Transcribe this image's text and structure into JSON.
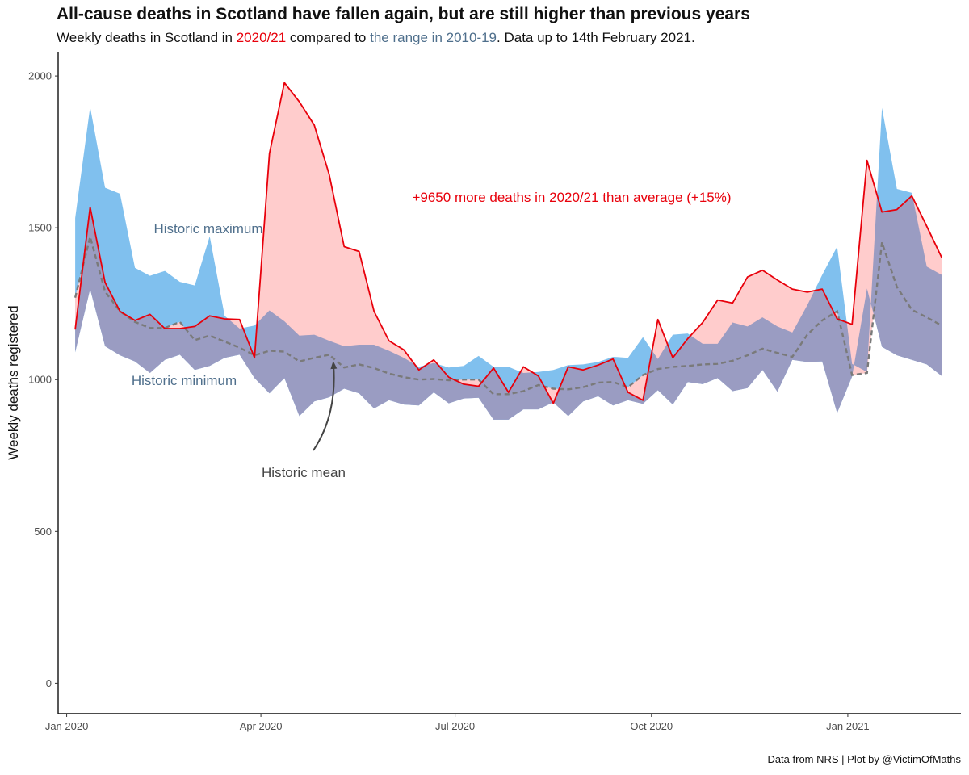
{
  "title": "All-cause deaths in Scotland have fallen again, but are still higher than previous years",
  "subtitle": {
    "part1": "Weekly deaths in Scotland in ",
    "highlight_current": "2020/21",
    "part2": " compared to ",
    "highlight_range": "the range in 2010-19",
    "part3": ". Data up to 14th February 2021."
  },
  "caption": "Data from NRS | Plot by @VictimOfMaths",
  "colors": {
    "current_line": "#e8000b",
    "excess_fill": "#ffcccc",
    "range_fill": "#80c0ee",
    "overlap_fill": "#9a9cc2",
    "mean_line": "#7a7a7a",
    "range_text": "#4f6f8c",
    "mean_text": "#444444",
    "axis": "#111111"
  },
  "chart_data": {
    "type": "area",
    "xlabel": "",
    "ylabel": "Weekly deaths registered",
    "xlim": [
      "2019-12-28",
      "2021-02-23"
    ],
    "ylim": [
      -100,
      2080
    ],
    "y_ticks": [
      0,
      500,
      1000,
      1500,
      2000
    ],
    "x_ticks": [
      {
        "date": "2020-01-01",
        "label": "Jan 2020"
      },
      {
        "date": "2020-04-01",
        "label": "Apr 2020"
      },
      {
        "date": "2020-07-01",
        "label": "Jul 2020"
      },
      {
        "date": "2020-10-01",
        "label": "Oct 2020"
      },
      {
        "date": "2021-01-01",
        "label": "Jan 2021"
      }
    ],
    "grid": false,
    "annotations": {
      "excess": "+9650 more deaths in 2020/21 than average (+15%)",
      "historic_max": "Historic maximum",
      "historic_min": "Historic minimum",
      "historic_mean": "Historic mean"
    },
    "dates": [
      "2020-01-05",
      "2020-01-12",
      "2020-01-19",
      "2020-01-26",
      "2020-02-02",
      "2020-02-09",
      "2020-02-16",
      "2020-02-23",
      "2020-03-01",
      "2020-03-08",
      "2020-03-15",
      "2020-03-22",
      "2020-03-29",
      "2020-04-05",
      "2020-04-12",
      "2020-04-19",
      "2020-04-26",
      "2020-05-03",
      "2020-05-10",
      "2020-05-17",
      "2020-05-24",
      "2020-05-31",
      "2020-06-07",
      "2020-06-14",
      "2020-06-21",
      "2020-06-28",
      "2020-07-05",
      "2020-07-12",
      "2020-07-19",
      "2020-07-26",
      "2020-08-02",
      "2020-08-09",
      "2020-08-16",
      "2020-08-23",
      "2020-08-30",
      "2020-09-06",
      "2020-09-13",
      "2020-09-20",
      "2020-09-27",
      "2020-10-04",
      "2020-10-11",
      "2020-10-18",
      "2020-10-25",
      "2020-11-01",
      "2020-11-08",
      "2020-11-15",
      "2020-11-22",
      "2020-11-29",
      "2020-12-06",
      "2020-12-13",
      "2020-12-20",
      "2020-12-27",
      "2021-01-03",
      "2021-01-10",
      "2021-01-17",
      "2021-01-24",
      "2021-01-31",
      "2021-02-07",
      "2021-02-14"
    ],
    "series": [
      {
        "name": "2020/21",
        "values": [
          1165,
          1568,
          1320,
          1225,
          1195,
          1215,
          1168,
          1168,
          1175,
          1210,
          1200,
          1198,
          1072,
          1745,
          1978,
          1915,
          1838,
          1675,
          1438,
          1422,
          1225,
          1128,
          1098,
          1032,
          1065,
          1008,
          985,
          978,
          1038,
          958,
          1042,
          1012,
          922,
          1042,
          1032,
          1048,
          1068,
          958,
          932,
          1198,
          1072,
          1135,
          1188,
          1262,
          1252,
          1338,
          1360,
          1328,
          1298,
          1288,
          1298,
          1200,
          1182,
          1722,
          1552,
          1560,
          1605,
          1505,
          1402
        ]
      },
      {
        "name": "historic_max",
        "values": [
          1532,
          1898,
          1632,
          1612,
          1368,
          1342,
          1358,
          1322,
          1310,
          1472,
          1210,
          1168,
          1178,
          1228,
          1192,
          1145,
          1148,
          1128,
          1110,
          1115,
          1115,
          1095,
          1072,
          1042,
          1055,
          1040,
          1045,
          1078,
          1042,
          1042,
          1022,
          1025,
          1032,
          1048,
          1050,
          1058,
          1075,
          1072,
          1140,
          1068,
          1148,
          1152,
          1118,
          1118,
          1188,
          1175,
          1205,
          1175,
          1155,
          1245,
          1345,
          1438,
          1052,
          1025,
          1895,
          1628,
          1615,
          1372,
          1345
        ]
      },
      {
        "name": "historic_min",
        "values": [
          1090,
          1298,
          1110,
          1080,
          1060,
          1022,
          1065,
          1082,
          1032,
          1045,
          1072,
          1082,
          1005,
          955,
          1005,
          880,
          928,
          942,
          970,
          955,
          905,
          932,
          918,
          915,
          958,
          922,
          938,
          940,
          868,
          868,
          902,
          902,
          925,
          880,
          928,
          945,
          915,
          932,
          920,
          965,
          918,
          992,
          985,
          1005,
          962,
          972,
          1032,
          960,
          1065,
          1058,
          1060,
          890,
          1010,
          1300,
          1108,
          1080,
          1065,
          1050,
          1012
        ]
      },
      {
        "name": "historic_mean",
        "values": [
          1270,
          1470,
          1290,
          1225,
          1190,
          1170,
          1170,
          1190,
          1130,
          1145,
          1125,
          1105,
          1080,
          1095,
          1092,
          1060,
          1072,
          1082,
          1040,
          1050,
          1038,
          1020,
          1008,
          1000,
          1002,
          998,
          1000,
          1000,
          952,
          952,
          962,
          982,
          970,
          968,
          975,
          990,
          992,
          975,
          1015,
          1035,
          1042,
          1045,
          1050,
          1052,
          1062,
          1080,
          1102,
          1088,
          1075,
          1148,
          1195,
          1225,
          1015,
          1022,
          1452,
          1305,
          1230,
          1205,
          1178
        ]
      }
    ]
  }
}
